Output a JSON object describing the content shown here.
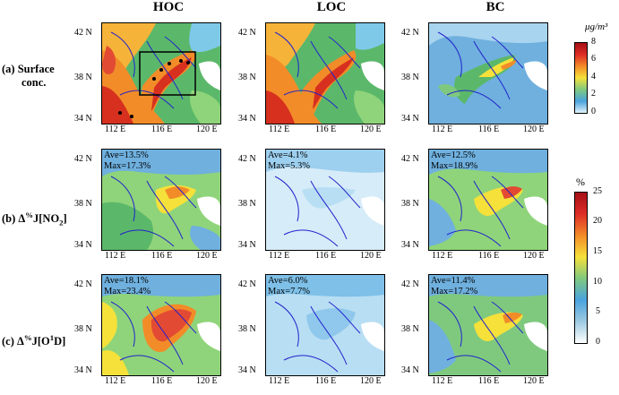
{
  "columns": [
    "HOC",
    "LOC",
    "BC"
  ],
  "rows": [
    {
      "label_main": "(a) Surface",
      "label_sub": "conc."
    },
    {
      "label_prefix": "(b) Δ",
      "label_sup": "%",
      "label_mid": "J[NO",
      "label_sub2": "2",
      "label_end": "]"
    },
    {
      "label_prefix": "(c) Δ",
      "label_sup": "%",
      "label_mid": "J[O",
      "label_sub2": "1",
      "label_end": "D]"
    }
  ],
  "lat_ticks": [
    "42 N",
    "38 N",
    "34 N"
  ],
  "lon_ticks": [
    "112 E",
    "116 E",
    "120 E"
  ],
  "stats": {
    "b_hoc": {
      "ave": "Ave=13.5%",
      "max": "Max=17.3%"
    },
    "b_loc": {
      "ave": "Ave=4.1%",
      "max": "Max=5.3%"
    },
    "b_bc": {
      "ave": "Ave=12.5%",
      "max": "Max=18.9%"
    },
    "c_hoc": {
      "ave": "Ave=18.1%",
      "max": "Max=23.4%"
    },
    "c_loc": {
      "ave": "Ave=6.0%",
      "max": "Max=7.7%"
    },
    "c_bc": {
      "ave": "Ave=11.4%",
      "max": "Max=17.2%"
    }
  },
  "colorbar_conc": {
    "unit": "μg/m³",
    "ticks": [
      "8",
      "6",
      "4",
      "2",
      "0"
    ]
  },
  "colorbar_pct": {
    "unit": "%",
    "ticks": [
      "25",
      "20",
      "15",
      "10",
      "5",
      "0"
    ]
  },
  "colors": {
    "low": "#ffffff",
    "blue": "#4aa3df",
    "green": "#4caf50",
    "yellow": "#f5e13a",
    "orange": "#f28c28",
    "red": "#b2182b",
    "border": "#2222cc",
    "sea": "#ffffff"
  }
}
